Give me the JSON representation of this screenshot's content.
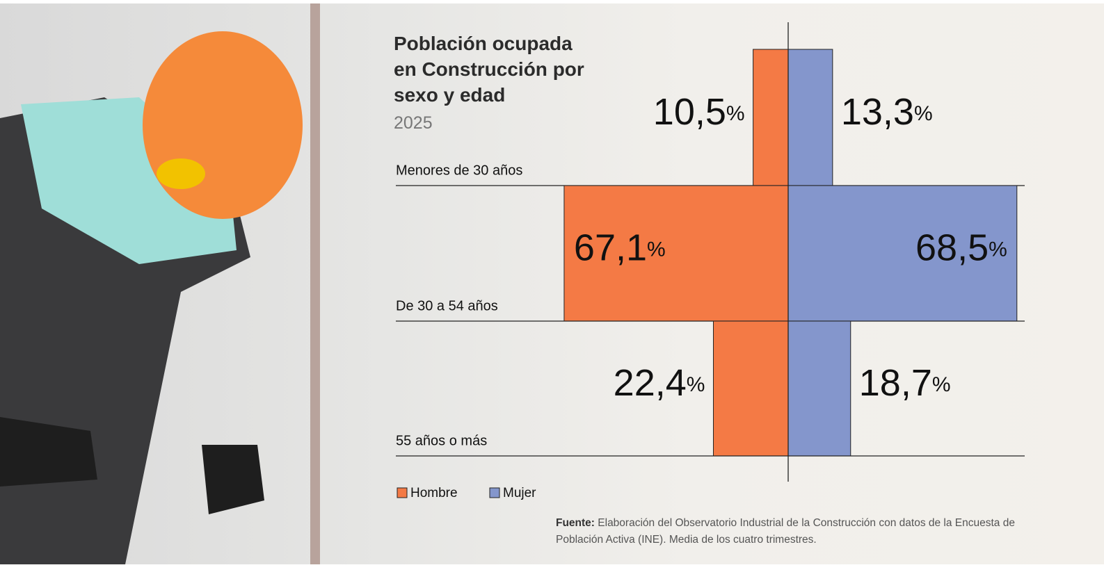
{
  "chart_data": {
    "type": "butterfly",
    "title": "Población ocupada en Construcción por sexo y edad",
    "subtitle": "2025",
    "categories": [
      "Menores de 30 años",
      "De 30 a 54 años",
      "55 años o más"
    ],
    "series": [
      {
        "name": "Hombre",
        "color": "#f47a45",
        "values": [
          10.5,
          67.1,
          22.4
        ],
        "value_labels": [
          "10,5%",
          "67,1%",
          "22,4%"
        ]
      },
      {
        "name": "Mujer",
        "color": "#8496cc",
        "values": [
          13.3,
          68.5,
          18.7
        ],
        "value_labels": [
          "13,3%",
          "68,5%",
          "18,7%"
        ]
      }
    ],
    "source_label": "Fuente:",
    "source": "Elaboración del Observatorio Industrial de la Construcción con datos de la Encuesta de Población Activa (INE). Media de los cuatro trimestres."
  }
}
